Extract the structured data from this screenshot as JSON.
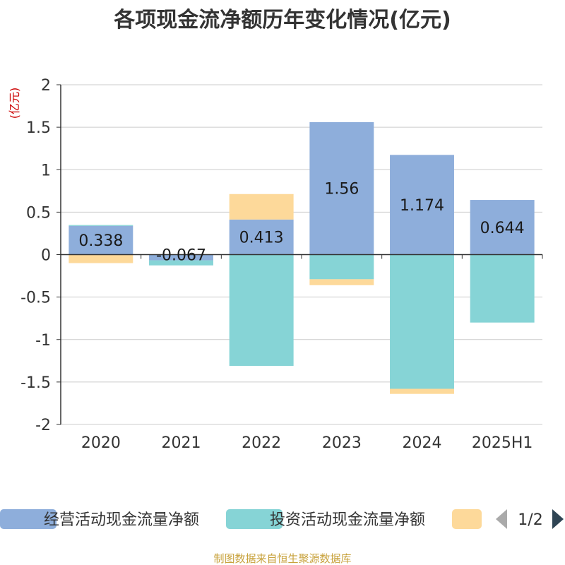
{
  "title": "各项现金流净额历年变化情况(亿元)",
  "unit_label": "(亿元)",
  "source": "制图数据来自恒生聚源数据库",
  "legend_pager": "1/2",
  "colors": {
    "operating": "#8eaedb",
    "investing": "#86d4d6",
    "financing": "#fdd99a",
    "axis": "#333333",
    "grid": "#cccccc",
    "pager_prev": "#aaaaaa",
    "pager_next": "#2f4554"
  },
  "chart_data": {
    "type": "bar",
    "stacked": true,
    "categories": [
      "2020",
      "2021",
      "2022",
      "2023",
      "2024",
      "2025H1"
    ],
    "ylim": [
      -2,
      2
    ],
    "yticks": [
      "2",
      "1.5",
      "1",
      "0.5",
      "0",
      "-0.5",
      "-1",
      "-1.5",
      "-2"
    ],
    "ytick_values": [
      2,
      1.5,
      1,
      0.5,
      0,
      -0.5,
      -1,
      -1.5,
      -2
    ],
    "grid": true,
    "legend_position": "bottom",
    "series": [
      {
        "name": "经营活动现金流量净额",
        "color_key": "operating",
        "values": [
          0.338,
          -0.067,
          0.413,
          1.56,
          1.174,
          0.644
        ],
        "labels": [
          "0.338",
          "-0.067",
          "0.413",
          "1.56",
          "1.174",
          "0.644"
        ]
      },
      {
        "name": "投资活动现金流量净额",
        "color_key": "investing",
        "values": [
          0.01,
          -0.06,
          -1.31,
          -0.29,
          -1.58,
          -0.8
        ]
      },
      {
        "name": "",
        "color_key": "financing",
        "values": [
          -0.1,
          0,
          0.3,
          -0.07,
          -0.06,
          0
        ]
      }
    ]
  }
}
